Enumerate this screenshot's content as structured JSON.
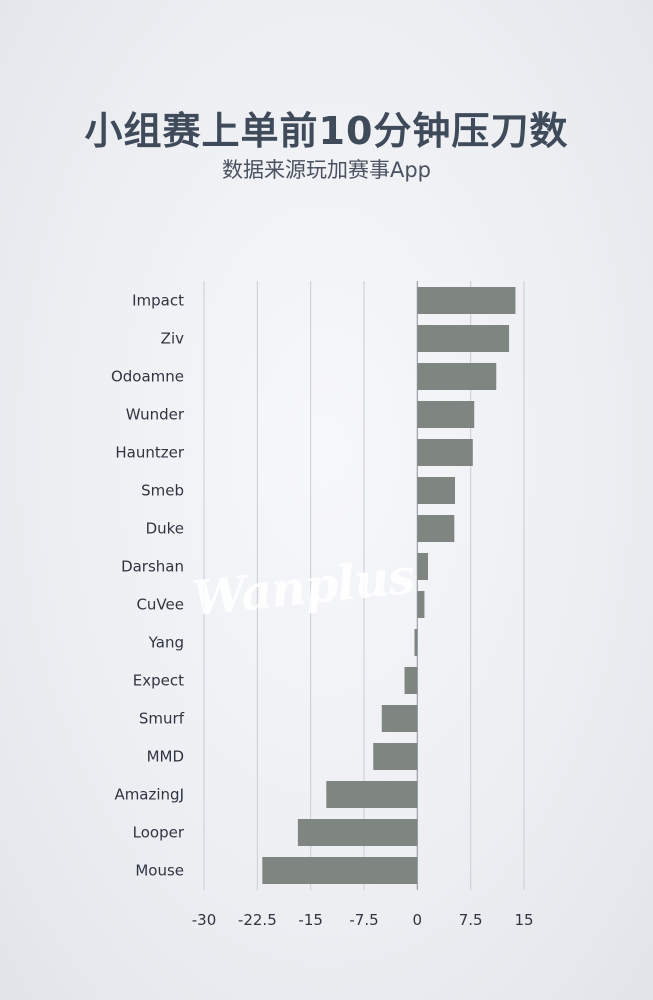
{
  "header": {
    "title": "小组赛上单前10分钟压刀数",
    "subtitle": "数据来源玩加赛事App"
  },
  "watermark": "Wanplus",
  "colors": {
    "bar": "#7f8682",
    "grid": "#c9ccd1",
    "axis": "#9aa0a8"
  },
  "chart_data": {
    "type": "bar",
    "orientation": "horizontal",
    "title": "小组赛上单前10分钟压刀数",
    "subtitle": "数据来源玩加赛事App",
    "xlabel": "",
    "ylabel": "",
    "xlim": [
      -30,
      15
    ],
    "ticks": [
      "-30",
      "-22.5",
      "-15",
      "-7.5",
      "0",
      "7.5",
      "15"
    ],
    "tick_values": [
      -30,
      -22.5,
      -15,
      -7.5,
      0,
      7.5,
      15
    ],
    "grid": "vertical",
    "categories": [
      "Impact",
      "Ziv",
      "Odoamne",
      "Wunder",
      "Hauntzer",
      "Smeb",
      "Duke",
      "Darshan",
      "CuVee",
      "Yang",
      "Expect",
      "Smurf",
      "MMD",
      "AmazingJ",
      "Looper",
      "Mouse"
    ],
    "values": [
      13.8,
      12.9,
      11.1,
      8.0,
      7.8,
      5.3,
      5.2,
      1.5,
      1.0,
      -0.4,
      -1.8,
      -5.0,
      -6.2,
      -12.8,
      -16.8,
      -21.8
    ]
  }
}
